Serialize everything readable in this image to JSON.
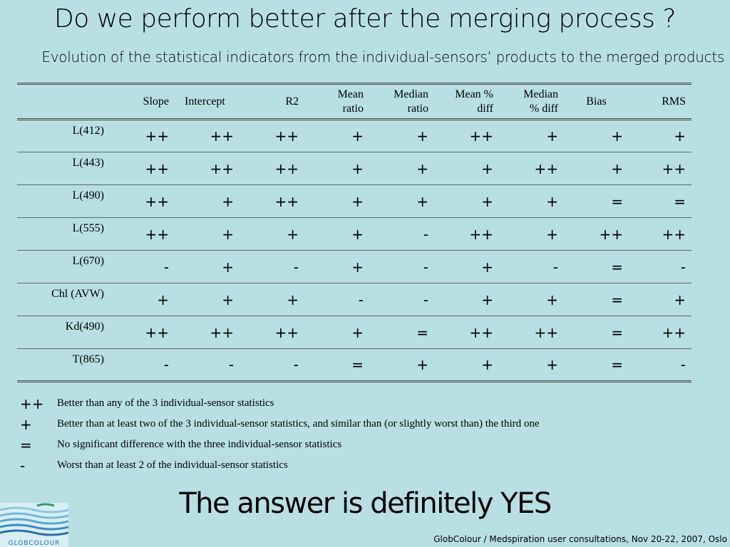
{
  "title": "Do we perform better after the merging process ?",
  "subtitle": "Evolution of the statistical indicators from the individual-sensors’ products to the merged products",
  "table": {
    "headers": [
      {
        "key": "slope",
        "lines": [
          "Slope"
        ]
      },
      {
        "key": "intercept",
        "lines": [
          "Intercept"
        ]
      },
      {
        "key": "r2",
        "lines": [
          "R2"
        ]
      },
      {
        "key": "mean_ratio",
        "lines": [
          "Mean",
          "ratio"
        ]
      },
      {
        "key": "median_ratio",
        "lines": [
          "Median",
          "ratio"
        ]
      },
      {
        "key": "mean_pct_diff",
        "lines": [
          "Mean %",
          "diff"
        ]
      },
      {
        "key": "median_pct_diff",
        "lines": [
          "Median",
          "% diff"
        ]
      },
      {
        "key": "bias",
        "lines": [
          "Bias"
        ]
      },
      {
        "key": "rms",
        "lines": [
          "RMS"
        ]
      }
    ],
    "rows": [
      {
        "label": "L(412)",
        "values": [
          "++",
          "++",
          "++",
          "+",
          "+",
          "++",
          "+",
          "+",
          "+"
        ]
      },
      {
        "label": "L(443)",
        "values": [
          "++",
          "++",
          "++",
          "+",
          "+",
          "+",
          "++",
          "+",
          "++"
        ]
      },
      {
        "label": "L(490)",
        "values": [
          "++",
          "+",
          "++",
          "+",
          "+",
          "+",
          "+",
          "=",
          "="
        ]
      },
      {
        "label": "L(555)",
        "values": [
          "++",
          "+",
          "+",
          "+",
          "-",
          "++",
          "+",
          "++",
          "++"
        ]
      },
      {
        "label": "L(670)",
        "values": [
          "-",
          "+",
          "-",
          "+",
          "-",
          "+",
          "-",
          "=",
          "-"
        ]
      },
      {
        "label": "Chl (AVW)",
        "values": [
          "+",
          "+",
          "+",
          "-",
          "-",
          "+",
          "+",
          "=",
          "+"
        ]
      },
      {
        "label": "Kd(490)",
        "values": [
          "++",
          "++",
          "++",
          "+",
          "=",
          "++",
          "++",
          "=",
          "++"
        ]
      },
      {
        "label": "T(865)",
        "values": [
          "-",
          "-",
          "-",
          "=",
          "+",
          "+",
          "+",
          "=",
          "-"
        ]
      }
    ]
  },
  "legend": [
    {
      "symbol": "++",
      "text": "Better than any of the 3 individual-sensor statistics"
    },
    {
      "symbol": "+",
      "text": "Better than at least two of the 3 individual-sensor statistics, and similar than (or slightly worst than) the third one"
    },
    {
      "symbol": "=",
      "text": "No significant difference with the three individual-sensor statistics"
    },
    {
      "symbol": "-",
      "text": "Worst than at least 2 of the individual-sensor statistics"
    }
  ],
  "answer": "The answer is definitely YES",
  "footer": "GlobColour / Medspiration user consultations, Nov 20-22, 2007, Oslo",
  "logo": {
    "text": "GLOBCOLOUR",
    "icon": "wave-logo-icon",
    "colors": [
      "#2f6fa8",
      "#8fc5e0",
      "#3a9a6a"
    ]
  }
}
